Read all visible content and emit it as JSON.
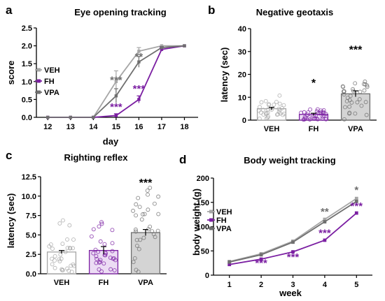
{
  "colors": {
    "veh": "#a6a6a6",
    "fh": "#7b1fa2",
    "vpa": "#6f6f6f",
    "axis": "#000000",
    "bar_vpa": "#d4d4d4",
    "bar_fh": "#ecdcf4",
    "bar_veh": "#ffffff"
  },
  "chart_data": [
    {
      "panel": "a",
      "type": "line",
      "title": "Eye opening tracking",
      "xlabel": "day",
      "ylabel": "score",
      "x": [
        12,
        13,
        14,
        15,
        16,
        17,
        18
      ],
      "xlim": [
        11.5,
        18.6
      ],
      "ylim": [
        0,
        2.5
      ],
      "yticks": [
        "0.0",
        "0.5",
        "1.0",
        "1.5",
        "2.0",
        "2.5"
      ],
      "legend": "left",
      "series": [
        {
          "name": "VEH",
          "key": "veh",
          "values": [
            0,
            0,
            0,
            1.0,
            1.85,
            2.0,
            2.0
          ],
          "err": [
            0,
            0,
            0,
            0.3,
            0.1,
            0,
            0
          ]
        },
        {
          "name": "FH",
          "key": "fh",
          "values": [
            0,
            0,
            0,
            0.05,
            0.5,
            1.9,
            2.0
          ],
          "err": [
            0,
            0,
            0,
            0.05,
            0.1,
            0.05,
            0
          ]
        },
        {
          "name": "VPA",
          "key": "vpa",
          "values": [
            0,
            0,
            0,
            0.6,
            1.55,
            1.95,
            2.0
          ],
          "err": [
            0,
            0,
            0,
            0.2,
            0.15,
            0.03,
            0
          ]
        }
      ],
      "annotations": [
        {
          "text": "***",
          "x": 15,
          "y": 0.95,
          "key": "vpa"
        },
        {
          "text": "***",
          "x": 15,
          "y": 0.2,
          "key": "fh"
        },
        {
          "text": "**",
          "x": 16,
          "y": 1.6,
          "key": "vpa"
        },
        {
          "text": "***",
          "x": 16,
          "y": 0.7,
          "key": "fh"
        }
      ]
    },
    {
      "panel": "b",
      "type": "bar",
      "title": "Negative geotaxis",
      "ylabel": "latency (sec)",
      "categories": [
        "VEH",
        "FH",
        "VPA"
      ],
      "values": [
        5.0,
        2.5,
        11.5
      ],
      "err": [
        0.6,
        0.5,
        1.3
      ],
      "ylim": [
        0,
        40
      ],
      "yticks": [
        "0",
        "10",
        "20",
        "30",
        "40"
      ],
      "annotations": [
        "",
        "*",
        "***"
      ]
    },
    {
      "panel": "c",
      "type": "bar",
      "title": "Righting reflex",
      "ylabel": "latency (sec)",
      "categories": [
        "VEH",
        "FH",
        "VPA"
      ],
      "values": [
        2.8,
        3.0,
        5.3
      ],
      "err": [
        0.2,
        0.5,
        0.4
      ],
      "ylim": [
        0,
        12.5
      ],
      "yticks": [
        "0.0",
        "2.5",
        "5.0",
        "7.5",
        "10.0",
        "12.5"
      ],
      "annotations": [
        "",
        "",
        "***"
      ]
    },
    {
      "panel": "d",
      "type": "line",
      "title": "Body weight tracking",
      "xlabel": "week",
      "ylabel": "body weight (g)",
      "x": [
        1,
        2,
        3,
        4,
        5
      ],
      "xlim": [
        0.5,
        5.5
      ],
      "ylim": [
        0,
        200
      ],
      "yticks": [
        "0",
        "50",
        "100",
        "150",
        "200"
      ],
      "legend": "top-left",
      "series": [
        {
          "name": "VEH",
          "key": "veh",
          "values": [
            28,
            44,
            70,
            115,
            158
          ]
        },
        {
          "name": "FH",
          "key": "fh",
          "values": [
            22,
            33,
            48,
            72,
            128
          ]
        },
        {
          "name": "VPA",
          "key": "vpa",
          "values": [
            27,
            42,
            68,
            110,
            152
          ]
        }
      ],
      "annotations": [
        {
          "text": "***",
          "x": 2,
          "y": 18,
          "key": "fh"
        },
        {
          "text": "***",
          "x": 3,
          "y": 30,
          "key": "fh"
        },
        {
          "text": "**",
          "x": 4,
          "y": 124,
          "key": "vpa"
        },
        {
          "text": "***",
          "x": 4,
          "y": 80,
          "key": "fh"
        },
        {
          "text": "*",
          "x": 5,
          "y": 168,
          "key": "vpa"
        },
        {
          "text": "***",
          "x": 5,
          "y": 135,
          "key": "fh"
        }
      ]
    }
  ],
  "panel_letters": [
    "a",
    "b",
    "c",
    "d"
  ]
}
